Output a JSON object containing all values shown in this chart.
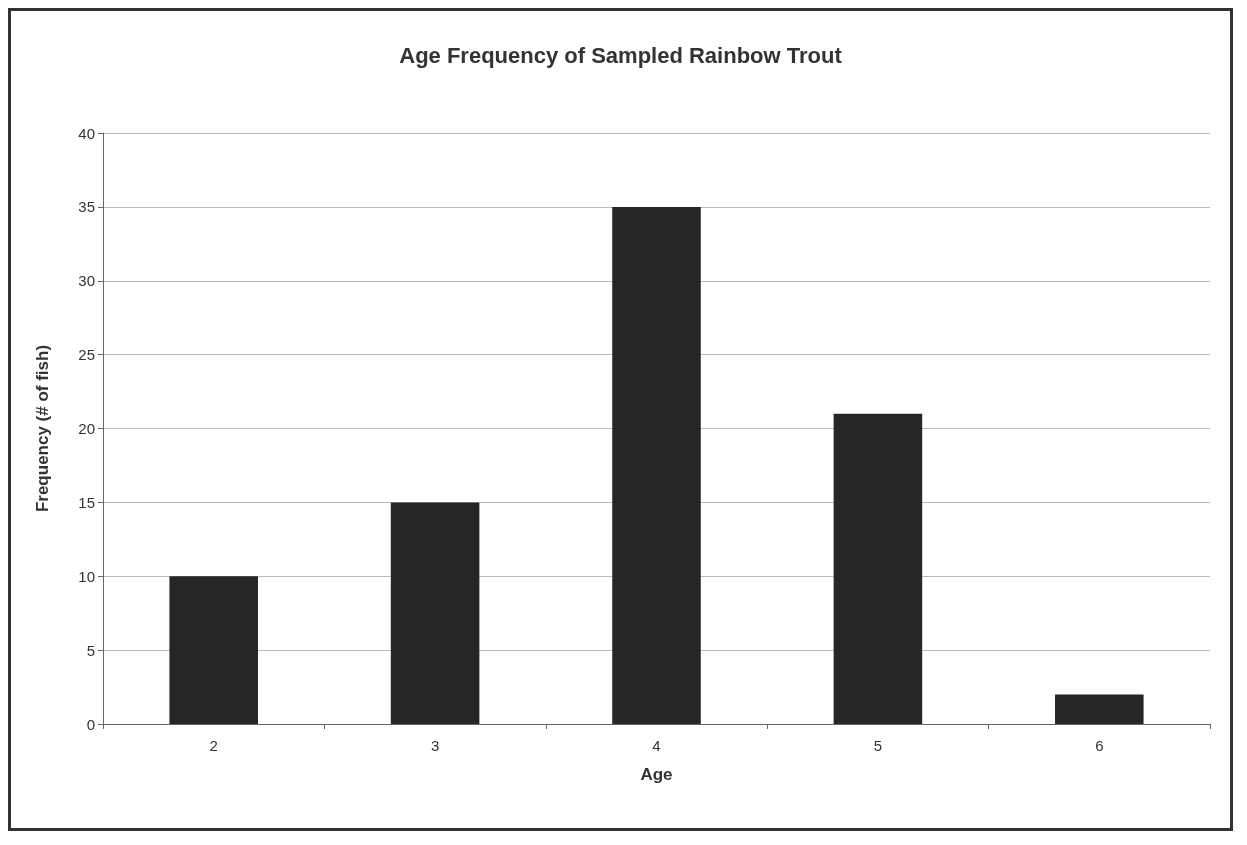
{
  "chart_data": {
    "type": "bar",
    "title": "Age Frequency of Sampled Rainbow Trout",
    "xlabel": "Age",
    "ylabel": "Frequency (# of fish)",
    "categories": [
      "2",
      "3",
      "4",
      "5",
      "6"
    ],
    "values": [
      10,
      15,
      35,
      21,
      2
    ],
    "color": "#262626",
    "ylim": [
      0,
      40
    ],
    "yticks": [
      0,
      5,
      10,
      15,
      20,
      25,
      30,
      35,
      40
    ],
    "grid": "y"
  }
}
